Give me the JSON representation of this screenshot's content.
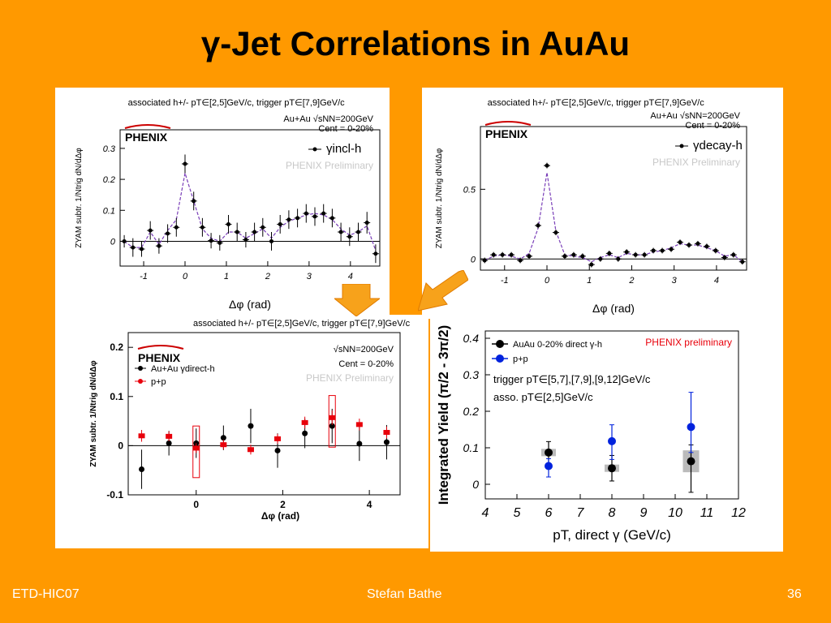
{
  "slide": {
    "title": "γ-Jet Correlations in AuAu",
    "footer_left": "ETD-HIC07",
    "footer_center": "Stefan Bathe",
    "footer_right": "36",
    "background": "#FF9900"
  },
  "chart_data": [
    {
      "type": "scatter",
      "id": "incl",
      "header": "associated h+/- pT∈[2,5]GeV/c,  trigger pT∈[7,9]GeV/c",
      "logo": "PHENIX",
      "system": "Au+Au √sNN=200GeV",
      "centrality": "Cent = 0-20%",
      "legend": "γincl-h",
      "watermark": "PHENIX Preliminary",
      "xlabel": "Δφ (rad)",
      "ylabel": "ZYAM subtr. 1/Ntrig dN/dΔφ",
      "xlim": [
        -1.57,
        4.71
      ],
      "ylim": [
        -0.08,
        0.36
      ],
      "xticks": [
        -1,
        0,
        1,
        2,
        3,
        4
      ],
      "yticks": [
        0,
        0.1,
        0.2,
        0.3
      ],
      "series": [
        {
          "x": [
            -1.47,
            -1.26,
            -1.05,
            -0.84,
            -0.63,
            -0.42,
            -0.21,
            0.0,
            0.21,
            0.42,
            0.63,
            0.84,
            1.05,
            1.26,
            1.47,
            1.68,
            1.88,
            2.09,
            2.3,
            2.51,
            2.72,
            2.93,
            3.14,
            3.35,
            3.56,
            3.77,
            3.98,
            4.19,
            4.4,
            4.61
          ],
          "y": [
            0.0,
            -0.02,
            -0.025,
            0.035,
            -0.015,
            0.025,
            0.045,
            0.25,
            0.13,
            0.045,
            0.002,
            -0.005,
            0.055,
            0.03,
            0.005,
            0.03,
            0.045,
            0.0,
            0.055,
            0.07,
            0.075,
            0.09,
            0.08,
            0.09,
            0.075,
            0.03,
            0.015,
            0.03,
            0.06,
            -0.04
          ],
          "err": [
            0.02,
            0.03,
            0.025,
            0.03,
            0.025,
            0.03,
            0.03,
            0.03,
            0.03,
            0.03,
            0.025,
            0.025,
            0.03,
            0.03,
            0.025,
            0.03,
            0.03,
            0.03,
            0.03,
            0.03,
            0.03,
            0.03,
            0.03,
            0.03,
            0.03,
            0.03,
            0.03,
            0.03,
            0.035,
            0.03
          ],
          "fit": [
            0.0,
            -0.02,
            -0.02,
            0.03,
            -0.01,
            0.035,
            0.07,
            0.22,
            0.13,
            0.04,
            0.01,
            0.0,
            0.03,
            0.03,
            0.01,
            0.025,
            0.04,
            0.01,
            0.045,
            0.065,
            0.075,
            0.085,
            0.09,
            0.085,
            0.07,
            0.04,
            0.02,
            0.03,
            0.05,
            -0.03
          ]
        }
      ]
    },
    {
      "type": "scatter",
      "id": "decay",
      "header": "associated h+/- pT∈[2,5]GeV/c,  trigger pT∈[7,9]GeV/c",
      "logo": "PHENIX",
      "system": "Au+Au √sNN=200GeV",
      "centrality": "Cent = 0-20%",
      "legend": "γdecay-h",
      "watermark": "PHENIX Preliminary",
      "xlabel": "Δφ (rad)",
      "ylabel": "ZYAM subtr. 1/Ntrig dN/dΔφ",
      "xlim": [
        -1.57,
        4.71
      ],
      "ylim": [
        -0.08,
        0.95
      ],
      "xticks": [
        -1,
        0,
        1,
        2,
        3,
        4
      ],
      "yticks": [
        0,
        0.5
      ],
      "series": [
        {
          "x": [
            -1.47,
            -1.26,
            -1.05,
            -0.84,
            -0.63,
            -0.42,
            -0.21,
            0.0,
            0.21,
            0.42,
            0.63,
            0.84,
            1.05,
            1.26,
            1.47,
            1.68,
            1.88,
            2.09,
            2.3,
            2.51,
            2.72,
            2.93,
            3.14,
            3.35,
            3.56,
            3.77,
            3.98,
            4.19,
            4.4,
            4.61
          ],
          "y": [
            -0.01,
            0.03,
            0.03,
            0.03,
            -0.01,
            0.02,
            0.24,
            0.67,
            0.19,
            0.02,
            0.03,
            0.02,
            -0.04,
            0.0,
            0.04,
            0.0,
            0.05,
            0.03,
            0.03,
            0.06,
            0.06,
            0.07,
            0.12,
            0.1,
            0.11,
            0.09,
            0.06,
            0.01,
            0.03,
            -0.02
          ],
          "err": [
            0.02,
            0.02,
            0.02,
            0.02,
            0.02,
            0.02,
            0.02,
            0.02,
            0.02,
            0.02,
            0.02,
            0.02,
            0.02,
            0.02,
            0.02,
            0.02,
            0.02,
            0.02,
            0.02,
            0.02,
            0.02,
            0.02,
            0.02,
            0.02,
            0.02,
            0.02,
            0.02,
            0.02,
            0.02,
            0.02
          ],
          "fit": [
            -0.01,
            0.02,
            0.03,
            0.02,
            0.0,
            0.04,
            0.22,
            0.62,
            0.2,
            0.03,
            0.02,
            0.01,
            -0.02,
            0.01,
            0.03,
            0.01,
            0.04,
            0.03,
            0.03,
            0.05,
            0.06,
            0.08,
            0.11,
            0.1,
            0.1,
            0.08,
            0.06,
            0.02,
            0.03,
            -0.02
          ]
        }
      ]
    },
    {
      "type": "scatter",
      "id": "direct",
      "header": "associated h+/- pT∈[2,5]GeV/c,  trigger pT∈[7,9]GeV/c",
      "logo": "PHENIX",
      "system": "√sNN=200GeV",
      "centrality": "Cent = 0-20%",
      "watermark": "PHENIX Preliminary",
      "xlabel": "Δφ (rad)",
      "ylabel": "ZYAM subtr. 1/Ntrig dN/dΔφ",
      "xlim": [
        -1.57,
        4.71
      ],
      "ylim": [
        -0.1,
        0.23
      ],
      "xticks": [
        0,
        2,
        4
      ],
      "yticks": [
        -0.1,
        0,
        0.1,
        0.2
      ],
      "series": [
        {
          "name": "Au+Au γdirect-h",
          "color": "#000000",
          "x": [
            -1.26,
            -0.63,
            0.0,
            0.63,
            1.26,
            1.88,
            2.51,
            3.14,
            3.77,
            4.4
          ],
          "y": [
            -0.048,
            0.005,
            0.005,
            0.016,
            0.04,
            -0.01,
            0.025,
            0.04,
            0.004,
            0.007
          ],
          "err": [
            0.04,
            0.025,
            0.03,
            0.025,
            0.035,
            0.035,
            0.03,
            0.035,
            0.035,
            0.035
          ]
        },
        {
          "name": "p+p",
          "color": "#E8000B",
          "x": [
            -1.26,
            -0.63,
            0.0,
            0.63,
            1.26,
            1.88,
            2.51,
            3.14,
            3.77,
            4.4
          ],
          "y": [
            0.02,
            0.019,
            -0.005,
            0.002,
            -0.008,
            0.014,
            0.047,
            0.057,
            0.043,
            0.027
          ],
          "err": [
            0.012,
            0.01,
            0.01,
            0.01,
            0.01,
            0.01,
            0.012,
            0.015,
            0.012,
            0.012
          ],
          "sys_boxes": [
            0.0,
            3.14
          ]
        }
      ]
    },
    {
      "type": "scatter",
      "id": "yield",
      "ylabel": "Integrated Yield (π/2 - 3π/2)",
      "xlabel": "pT, direct γ (GeV/c)",
      "watermark": "PHENIX preliminary",
      "note1": "trigger pT∈[5,7],[7,9],[9,12]GeV/c",
      "note2": "asso. pT∈[2,5]GeV/c",
      "xlim": [
        4,
        12
      ],
      "ylim": [
        -0.04,
        0.42
      ],
      "xticks": [
        4,
        5,
        6,
        7,
        8,
        9,
        10,
        11,
        12
      ],
      "yticks": [
        0,
        0.1,
        0.2,
        0.3,
        0.4
      ],
      "series": [
        {
          "name": "AuAu 0-20% direct γ-h",
          "color": "#000000",
          "x": [
            6,
            8,
            10.5
          ],
          "y": [
            0.087,
            0.044,
            0.063
          ],
          "err_up": [
            0.03,
            0.035,
            0.045
          ],
          "err_dn": [
            0.03,
            0.035,
            0.085
          ],
          "sys": [
            0.01,
            0.01,
            0.03
          ]
        },
        {
          "name": "p+p",
          "color": "#0022DD",
          "x": [
            6,
            8,
            10.5
          ],
          "y": [
            0.05,
            0.118,
            0.157
          ],
          "err_up": [
            0.02,
            0.045,
            0.095
          ],
          "err_dn": [
            0.03,
            0.05,
            0.07
          ]
        }
      ]
    }
  ]
}
